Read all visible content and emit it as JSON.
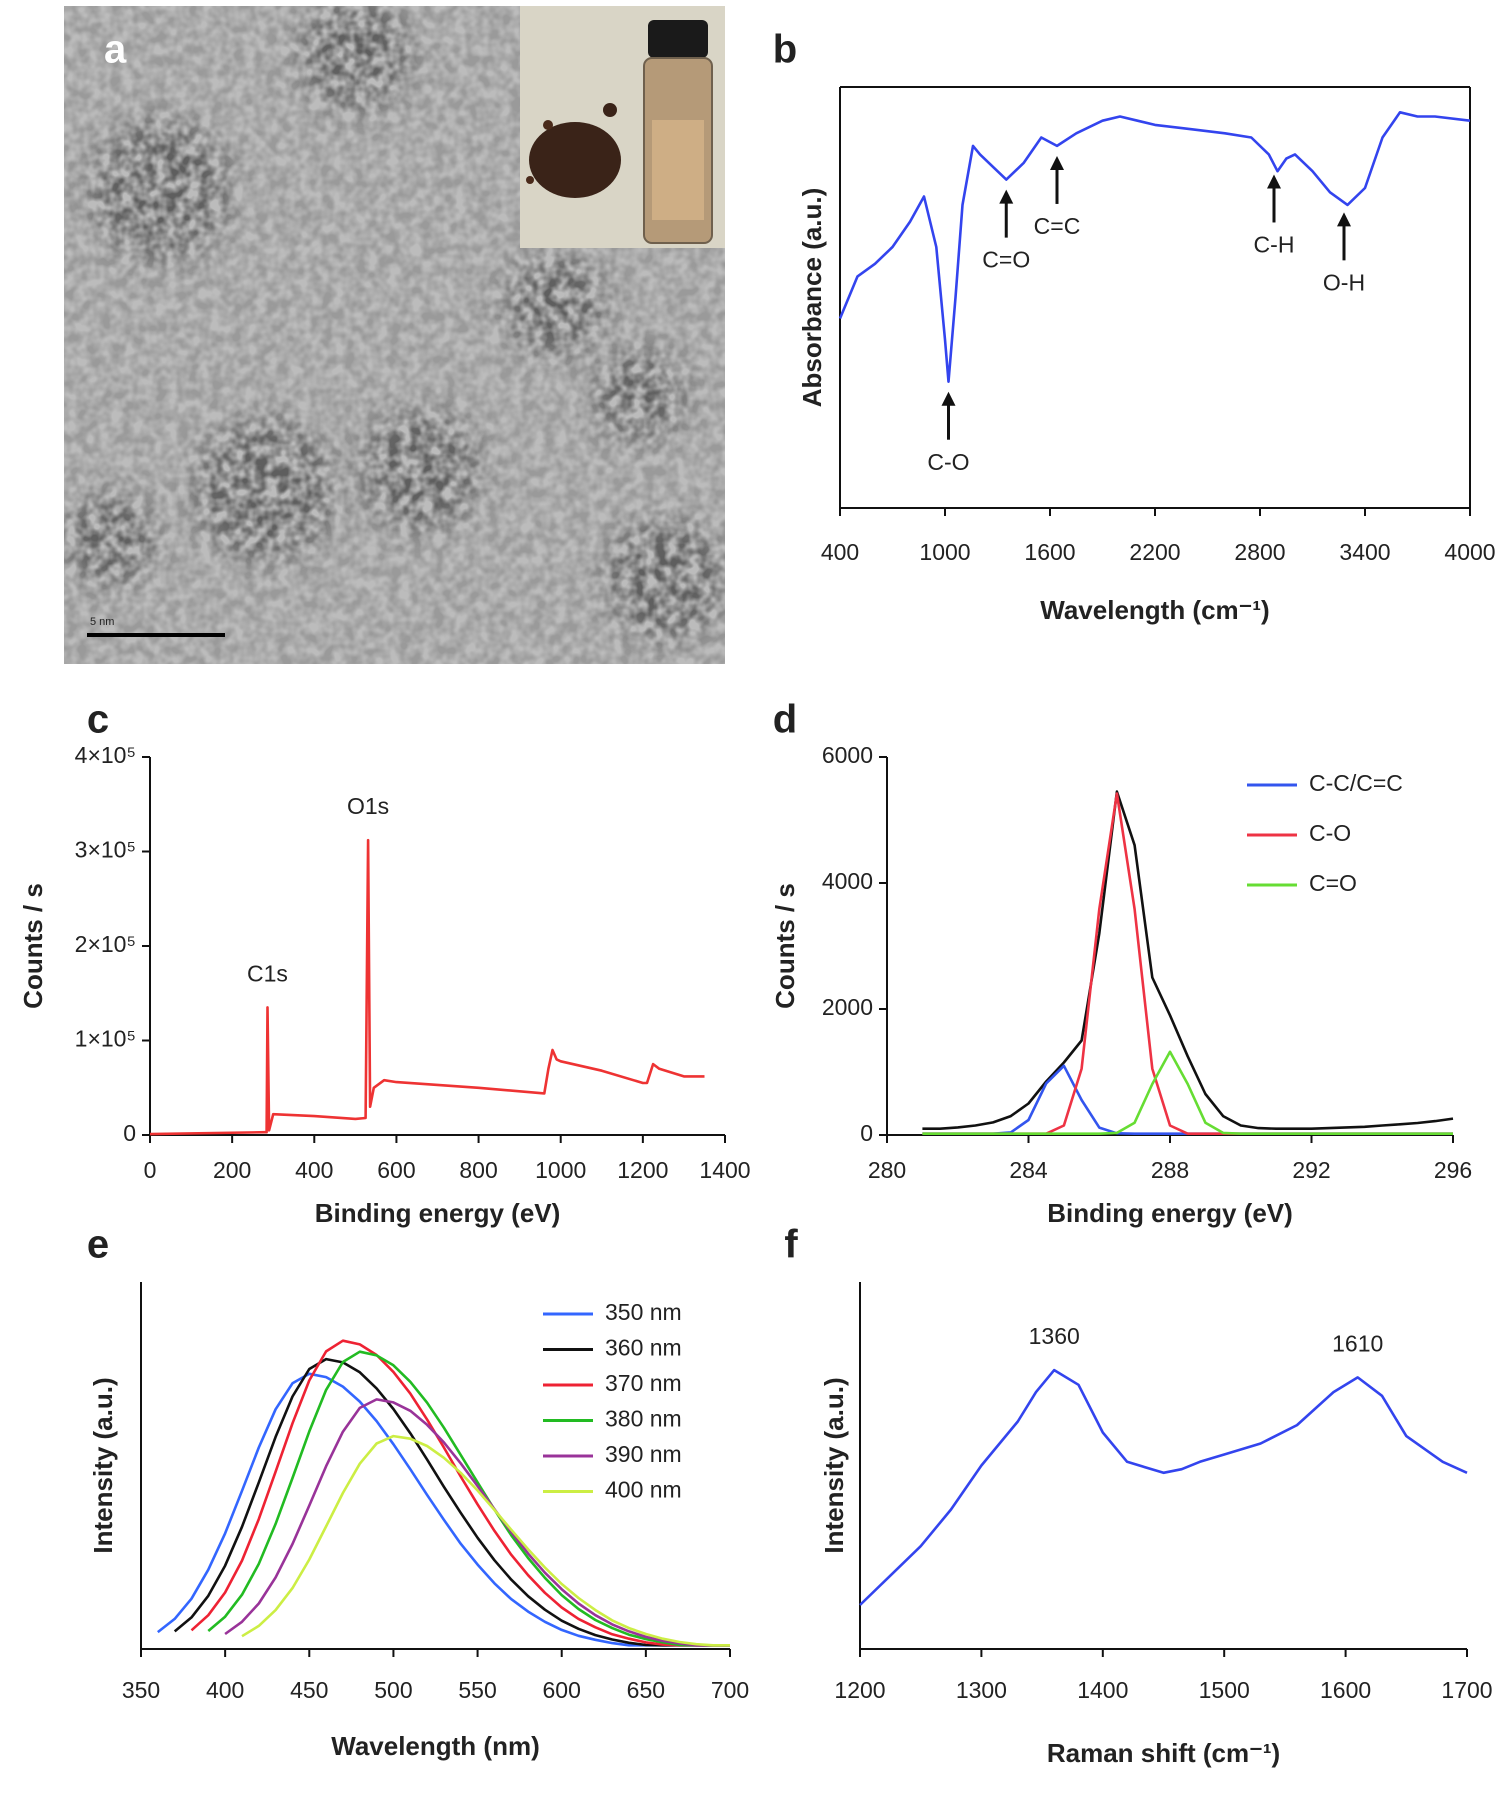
{
  "image_panel": {
    "label": "a",
    "scale_bar": "5 nm"
  },
  "chart_data": [
    {
      "type": "line",
      "label": "b",
      "x_label": "Wavelength (cm⁻¹)",
      "y_label": "Absorbance (a.u.)",
      "xlim": [
        400,
        4000
      ],
      "xticks": [
        400,
        1000,
        1600,
        2200,
        2800,
        3400,
        4000
      ],
      "ylim": [
        0,
        100
      ],
      "x": [
        400,
        500,
        600,
        700,
        800,
        880,
        950,
        1000,
        1020,
        1060,
        1100,
        1160,
        1200,
        1300,
        1350,
        1450,
        1550,
        1640,
        1750,
        1900,
        2000,
        2100,
        2200,
        2400,
        2600,
        2750,
        2850,
        2900,
        2950,
        3000,
        3100,
        3200,
        3300,
        3400,
        3500,
        3600,
        3700,
        3800,
        4000
      ],
      "series": [
        {
          "color": "#3344ee",
          "values": [
            45,
            55,
            58,
            62,
            68,
            74,
            62,
            40,
            30,
            50,
            72,
            86,
            84,
            80,
            78,
            82,
            88,
            86,
            89,
            92,
            93,
            92,
            91,
            90,
            89,
            88,
            84,
            80,
            83,
            84,
            80,
            75,
            72,
            76,
            88,
            94,
            93,
            93,
            92
          ]
        }
      ],
      "annotations": [
        {
          "text": "C-O",
          "x": 1020
        },
        {
          "text": "C=O",
          "x": 1350
        },
        {
          "text": "C=C",
          "x": 1640
        },
        {
          "text": "C-H",
          "x": 2880
        },
        {
          "text": "O-H",
          "x": 3280
        }
      ]
    },
    {
      "type": "line",
      "label": "c",
      "x_label": "Binding energy (eV)",
      "y_label": "Counts / s",
      "xlim": [
        0,
        1400
      ],
      "xticks": [
        0,
        200,
        400,
        600,
        800,
        1000,
        1200,
        1400
      ],
      "ylim": [
        0,
        400000
      ],
      "yticks": [
        0,
        {
          "value": 100000,
          "label": "1×10⁵"
        },
        {
          "value": 200000,
          "label": "2×10⁵"
        },
        {
          "value": 300000,
          "label": "3×10⁵"
        },
        {
          "value": 400000,
          "label": "4×10⁵"
        }
      ],
      "x": [
        0,
        280,
        284,
        286,
        290,
        300,
        400,
        500,
        525,
        531,
        536,
        545,
        570,
        600,
        800,
        960,
        970,
        980,
        990,
        1000,
        1100,
        1200,
        1210,
        1225,
        1240,
        1300,
        1350
      ],
      "series": [
        {
          "color": "#ee3333",
          "values": [
            1000,
            3000,
            3000,
            135000,
            5000,
            22000,
            20000,
            17000,
            18000,
            312000,
            30000,
            50000,
            58000,
            56000,
            50000,
            44000,
            70000,
            90000,
            80000,
            78000,
            68000,
            55000,
            55000,
            75000,
            70000,
            62000,
            62000
          ]
        }
      ],
      "annotations": [
        {
          "text": "C1s",
          "x": 286
        },
        {
          "text": "O1s",
          "x": 531
        }
      ]
    },
    {
      "type": "line",
      "label": "d",
      "x_label": "Binding energy (eV)",
      "y_label": "Counts / s",
      "xlim": [
        280,
        296
      ],
      "xticks": [
        280,
        284,
        288,
        292,
        296
      ],
      "ylim": [
        0,
        6000
      ],
      "yticks": [
        0,
        2000,
        4000,
        6000
      ],
      "legend": "upper right",
      "x": [
        281,
        281.5,
        282,
        282.5,
        283,
        283.5,
        284,
        284.5,
        285,
        285.5,
        286,
        286.5,
        287,
        287.5,
        288,
        288.5,
        289,
        289.5,
        290,
        290.5,
        291,
        291.5,
        292,
        292.5,
        293,
        293.5,
        294,
        294.5,
        295,
        295.5,
        296
      ],
      "series": [
        {
          "color": "#111111",
          "values": [
            100,
            100,
            120,
            150,
            200,
            300,
            500,
            850,
            1150,
            1500,
            3200,
            5450,
            4600,
            2500,
            1900,
            1250,
            650,
            300,
            150,
            110,
            100,
            100,
            100,
            110,
            120,
            130,
            150,
            170,
            190,
            220,
            260
          ]
        },
        {
          "name": "C-C/C=C",
          "color": "#3355ee",
          "values": [
            20,
            20,
            20,
            20,
            20,
            42,
            238,
            819,
            1098,
            555,
            118,
            27,
            20,
            20,
            20,
            20,
            20,
            20,
            20,
            20,
            20,
            20,
            20,
            20,
            20,
            20,
            20,
            20,
            20,
            20,
            20
          ]
        },
        {
          "name": "C-O",
          "color": "#ee3344",
          "values": [
            20,
            20,
            20,
            20,
            20,
            20,
            20,
            20,
            151,
            1053,
            3585,
            5420,
            3585,
            1053,
            151,
            20,
            20,
            20,
            20,
            20,
            20,
            20,
            20,
            20,
            20,
            20,
            20,
            20,
            20,
            20,
            20
          ]
        },
        {
          "name": "C=O",
          "color": "#66dd33",
          "values": [
            20,
            20,
            20,
            20,
            20,
            20,
            20,
            20,
            20,
            20,
            20,
            34,
            196,
            809,
            1320,
            809,
            196,
            34,
            20,
            20,
            20,
            20,
            20,
            20,
            20,
            20,
            20,
            20,
            20,
            20,
            20
          ]
        }
      ]
    },
    {
      "type": "line",
      "label": "e",
      "x_label": "Wavelength (nm)",
      "y_label": "Intensity (a.u.)",
      "xlim": [
        350,
        700
      ],
      "xticks": [
        350,
        400,
        450,
        500,
        550,
        600,
        650,
        700
      ],
      "ylim": [
        0,
        100
      ],
      "legend": "upper right",
      "x": [
        360,
        370,
        380,
        390,
        400,
        410,
        420,
        430,
        440,
        450,
        460,
        470,
        480,
        490,
        500,
        510,
        520,
        530,
        540,
        550,
        560,
        570,
        580,
        590,
        600,
        610,
        620,
        630,
        640,
        650,
        660,
        670,
        680,
        690,
        700
      ],
      "series": [
        {
          "name": "350 nm",
          "color": "#3366ff",
          "values": [
            4.6,
            8.2,
            13.7,
            21.6,
            31.5,
            43.1,
            54.9,
            65.3,
            72.4,
            75,
            74.1,
            71.5,
            67.4,
            62.1,
            55.8,
            49.0,
            42.0,
            35.2,
            28.7,
            23.0,
            17.9,
            13.6,
            10.2,
            7.4,
            5.2,
            3.6,
            2.5,
            1.6,
            1.0,
            1,
            1,
            1,
            1,
            1,
            1
          ]
        },
        {
          "name": "360 nm",
          "color": "#111111",
          "values": [
            null,
            4.8,
            8.6,
            14.5,
            22.7,
            33.3,
            45.4,
            57.8,
            68.8,
            76.3,
            79,
            78.1,
            75.4,
            71.0,
            65.4,
            58.8,
            51.6,
            44.2,
            37.1,
            30.3,
            24.2,
            18.9,
            14.4,
            10.7,
            7.7,
            5.5,
            3.8,
            2.6,
            1.7,
            1.1,
            1,
            1,
            1,
            1,
            1
          ]
        },
        {
          "name": "370 nm",
          "color": "#ee2233",
          "values": [
            null,
            null,
            5.1,
            9.2,
            15.4,
            24.1,
            35.4,
            48.3,
            61.5,
            73.2,
            81.1,
            84,
            83.0,
            80.1,
            75.5,
            69.6,
            62.5,
            54.9,
            47.0,
            39.4,
            32.2,
            25.7,
            20.1,
            15.3,
            11.3,
            8.2,
            5.9,
            4.0,
            2.8,
            1.8,
            1.2,
            1,
            1,
            1,
            1
          ]
        },
        {
          "name": "380 nm",
          "color": "#22bb22",
          "values": [
            null,
            null,
            null,
            4.9,
            8.8,
            14.8,
            23.2,
            34.1,
            46.6,
            59.3,
            70.6,
            78.2,
            81,
            80.0,
            77.3,
            72.8,
            67.1,
            60.3,
            52.9,
            45.4,
            38.0,
            31.0,
            24.8,
            19.4,
            14.7,
            10.9,
            7.9,
            5.7,
            3.9,
            2.7,
            1.8,
            1.1,
            1,
            1,
            1
          ]
        },
        {
          "name": "390 nm",
          "color": "#993399",
          "values": [
            null,
            null,
            null,
            null,
            4.1,
            7.4,
            12.4,
            19.5,
            28.6,
            39.1,
            49.8,
            59.2,
            65.7,
            68,
            67.2,
            64.9,
            61.1,
            56.3,
            50.6,
            44.4,
            38.1,
            31.9,
            26.0,
            20.8,
            16.3,
            12.4,
            9.2,
            6.7,
            4.8,
            3.3,
            2.2,
            1.5,
            1.0,
            1,
            1
          ]
        },
        {
          "name": "400 nm",
          "color": "#ccee44",
          "values": [
            null,
            null,
            null,
            null,
            null,
            3.5,
            6.3,
            10.6,
            16.6,
            24.4,
            33.4,
            42.5,
            50.5,
            56.0,
            58,
            57.3,
            55.3,
            52.1,
            48.0,
            43.2,
            37.9,
            32.5,
            27.2,
            22.2,
            17.7,
            13.9,
            10.6,
            7.8,
            5.7,
            4.1,
            2.8,
            1.9,
            1.3,
            1.0,
            1
          ]
        }
      ]
    },
    {
      "type": "line",
      "label": "f",
      "x_label": "Raman shift (cm⁻¹)",
      "y_label": "Intensity (a.u.)",
      "xlim": [
        1200,
        1700
      ],
      "xticks": [
        1200,
        1300,
        1400,
        1500,
        1600,
        1700
      ],
      "ylim": [
        0,
        100
      ],
      "x": [
        1200,
        1225,
        1250,
        1275,
        1300,
        1330,
        1345,
        1360,
        1380,
        1400,
        1420,
        1450,
        1465,
        1480,
        1500,
        1530,
        1560,
        1590,
        1610,
        1630,
        1650,
        1680,
        1700
      ],
      "series": [
        {
          "color": "#3344ee",
          "values": [
            12,
            20,
            28,
            38,
            50,
            62,
            70,
            76,
            72,
            59,
            51,
            48,
            49,
            51,
            53,
            56,
            61,
            70,
            74,
            69,
            58,
            51,
            48
          ]
        }
      ],
      "annotations": [
        {
          "text": "1360",
          "x": 1360
        },
        {
          "text": "1610",
          "x": 1610
        }
      ]
    }
  ]
}
